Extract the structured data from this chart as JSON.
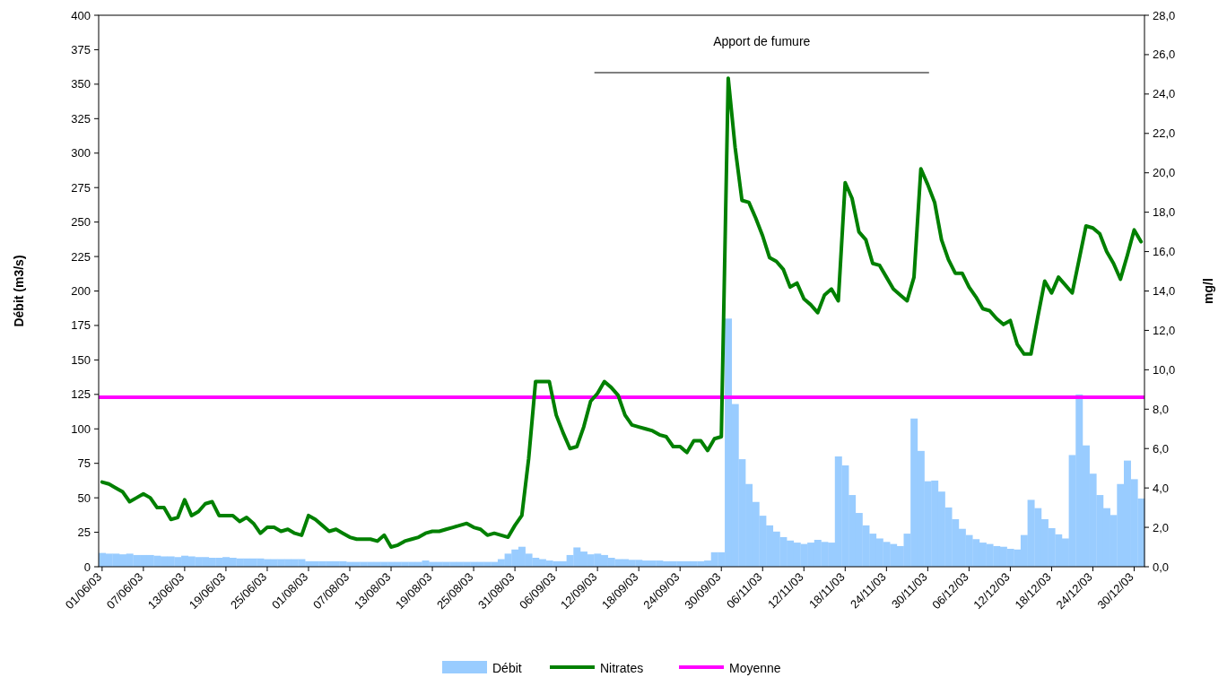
{
  "chart_data": {
    "type": "bar",
    "ylabel": "Débit (m3/s)",
    "y2label": "mg/l",
    "categories": [
      "01/06/03",
      null,
      null,
      null,
      null,
      null,
      "07/06/03",
      null,
      null,
      null,
      null,
      null,
      "13/06/03",
      null,
      null,
      null,
      null,
      null,
      "19/06/03",
      null,
      null,
      null,
      null,
      null,
      "25/06/03",
      null,
      null,
      null,
      null,
      null,
      "01/08/03",
      null,
      null,
      null,
      null,
      null,
      "07/08/03",
      null,
      null,
      null,
      null,
      null,
      "13/08/03",
      null,
      null,
      null,
      null,
      null,
      "19/08/03",
      null,
      null,
      null,
      null,
      null,
      "25/08/03",
      null,
      null,
      null,
      null,
      null,
      "31/08/03",
      null,
      null,
      null,
      null,
      null,
      "06/09/03",
      null,
      null,
      null,
      null,
      null,
      "12/09/03",
      null,
      null,
      null,
      null,
      null,
      "18/09/03",
      null,
      null,
      null,
      null,
      null,
      "24/09/03",
      null,
      null,
      null,
      null,
      null,
      "30/09/03",
      null,
      null,
      null,
      null,
      null,
      "06/11/03",
      null,
      null,
      null,
      null,
      null,
      "12/11/03",
      null,
      null,
      null,
      null,
      null,
      "18/11/03",
      null,
      null,
      null,
      null,
      null,
      "24/11/03",
      null,
      null,
      null,
      null,
      null,
      "30/11/03",
      null,
      null,
      null,
      null,
      null,
      "06/12/03",
      null,
      null,
      null,
      null,
      null,
      "12/12/03",
      null,
      null,
      null,
      null,
      null,
      "18/12/03",
      null,
      null,
      null,
      null,
      null,
      "24/12/03",
      null,
      null,
      null,
      null,
      null,
      "30/12/03",
      null
    ],
    "series": [
      {
        "name": "Débit",
        "color": "#99ccff",
        "values": [
          10,
          9.5,
          9.5,
          9,
          9.5,
          8.5,
          8.5,
          8.5,
          8,
          7.5,
          7.5,
          7,
          8,
          7.5,
          7,
          7,
          6.5,
          6.5,
          7,
          6.5,
          6,
          6,
          6,
          6,
          5.5,
          5.5,
          5.5,
          5.5,
          5.5,
          5.5,
          4,
          4,
          4,
          4,
          4,
          4,
          3.5,
          3.5,
          3.5,
          3.5,
          3.5,
          3.5,
          3.5,
          3.5,
          3.5,
          3.5,
          3.5,
          4.5,
          3.5,
          3.5,
          3.5,
          3.5,
          3.5,
          3.5,
          3.5,
          3.5,
          3.5,
          3.5,
          5.5,
          9.5,
          12.5,
          14.5,
          9.5,
          6.5,
          5.5,
          4.5,
          4,
          4,
          8.5,
          14,
          11,
          9,
          9.5,
          8.5,
          6.5,
          5.5,
          5.5,
          5,
          5,
          4.5,
          4.5,
          4.5,
          4,
          4,
          4,
          4,
          4,
          4,
          4.5,
          10.5,
          10.5,
          180,
          118,
          78,
          60,
          47,
          37,
          30,
          25.5,
          21.5,
          19,
          17.5,
          16.5,
          17.5,
          19.5,
          18,
          17.5,
          80,
          73.5,
          52,
          39,
          30,
          24,
          20.5,
          18,
          16.5,
          15,
          24,
          107.5,
          84,
          62,
          62.5,
          54.5,
          43,
          34.5,
          27.5,
          23,
          20,
          17.5,
          16.5,
          15,
          14.5,
          13,
          12.5,
          23,
          48.5,
          42.5,
          34.5,
          28,
          23.5,
          20.5,
          81,
          125,
          88,
          67.5,
          52,
          42.5,
          37.5,
          60,
          77,
          63.5,
          49.5
        ]
      },
      {
        "name": "Nitrates",
        "type": "line",
        "axis": "y2",
        "color": "#008000",
        "values": [
          4.3,
          4.2,
          4.0,
          3.8,
          3.3,
          3.5,
          3.7,
          3.5,
          3.0,
          3.0,
          2.4,
          2.5,
          3.4,
          2.6,
          2.8,
          3.2,
          3.3,
          2.6,
          2.6,
          2.6,
          2.3,
          2.5,
          2.2,
          1.7,
          2.0,
          2.0,
          1.8,
          1.9,
          1.7,
          1.6,
          2.6,
          2.4,
          2.1,
          1.8,
          1.9,
          1.7,
          1.5,
          1.4,
          1.4,
          1.4,
          1.3,
          1.6,
          1.0,
          1.1,
          1.3,
          1.4,
          1.5,
          1.7,
          1.8,
          1.8,
          1.9,
          2.0,
          2.1,
          2.2,
          2.0,
          1.9,
          1.6,
          1.7,
          1.6,
          1.5,
          2.1,
          2.6,
          5.5,
          9.4,
          9.4,
          9.4,
          7.7,
          6.8,
          6.0,
          6.1,
          7.1,
          8.4,
          8.8,
          9.4,
          9.1,
          8.7,
          7.7,
          7.2,
          7.1,
          7.0,
          6.9,
          6.7,
          6.6,
          6.1,
          6.1,
          5.8,
          6.4,
          6.4,
          5.9,
          6.5,
          6.6,
          24.8,
          21.3,
          18.6,
          18.5,
          17.7,
          16.8,
          15.7,
          15.5,
          15.1,
          14.2,
          14.4,
          13.6,
          13.3,
          12.9,
          13.8,
          14.1,
          13.5,
          19.5,
          18.7,
          17.0,
          16.6,
          15.4,
          15.3,
          14.7,
          14.1,
          13.8,
          13.5,
          14.7,
          20.2,
          19.4,
          18.5,
          16.6,
          15.6,
          14.9,
          14.9,
          14.2,
          13.7,
          13.1,
          13.0,
          12.6,
          12.3,
          12.5,
          11.3,
          10.8,
          10.8,
          12.7,
          14.5,
          13.9,
          14.7,
          14.3,
          13.9,
          15.6,
          17.3,
          17.2,
          16.9,
          16.0,
          15.4,
          14.6,
          15.8,
          17.1,
          16.5
        ]
      }
    ],
    "ylim": [
      0,
      400
    ],
    "yticks": [
      0,
      25,
      50,
      75,
      100,
      125,
      150,
      175,
      200,
      225,
      250,
      275,
      300,
      325,
      350,
      375,
      400
    ],
    "y2lim": [
      0,
      28
    ],
    "y2ticks": [
      {
        "value": 0,
        "label": "0,0"
      },
      {
        "value": 2,
        "label": "2,0"
      },
      {
        "value": 4,
        "label": "4,0"
      },
      {
        "value": 6,
        "label": "6,0"
      },
      {
        "value": 8,
        "label": "8,0"
      },
      {
        "value": 10,
        "label": "10,0"
      },
      {
        "value": 12,
        "label": "12,0"
      },
      {
        "value": 14,
        "label": "14,0"
      },
      {
        "value": 16,
        "label": "16,0"
      },
      {
        "value": 18,
        "label": "18,0"
      },
      {
        "value": 20,
        "label": "20,0"
      },
      {
        "value": 22,
        "label": "22,0"
      },
      {
        "value": 24,
        "label": "24,0"
      },
      {
        "value": 26,
        "label": "26,0"
      },
      {
        "value": 28,
        "label": "28,0"
      }
    ],
    "ref_lines": [
      {
        "axis": "y2",
        "value": 8.6,
        "label": "Moyenne",
        "color": "#ff00ff"
      }
    ],
    "annotations": [
      "Apport de fumure"
    ],
    "legend": "bottom"
  }
}
